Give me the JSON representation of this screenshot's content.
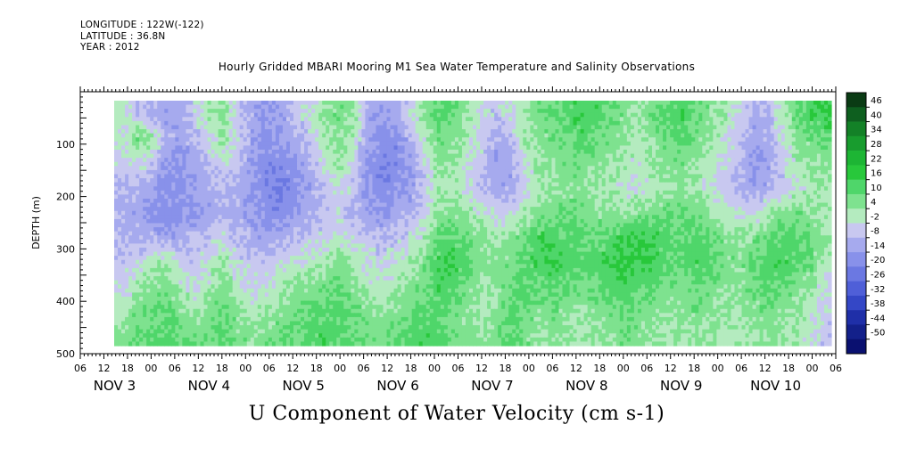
{
  "header": {
    "lines": [
      "LONGITUDE : 122W(-122)",
      "LATITUDE : 36.8N",
      "YEAR : 2012"
    ],
    "title": "Hourly Gridded MBARI Mooring M1 Sea Water Temperature and Salinity Observations"
  },
  "caption": "U Component of Water Velocity (cm s-1)",
  "chart_data": {
    "type": "heatmap",
    "title": "Hourly Gridded MBARI Mooring M1 Sea Water Temperature and Salinity Observations",
    "ylabel": "DEPTH (m)",
    "xlabel": "",
    "ylim": [
      500,
      0
    ],
    "xlim": [
      "NOV 2 06:00",
      "NOV 10 06:00"
    ],
    "yticks": [
      100,
      200,
      300,
      400,
      500
    ],
    "yticks_partial": {
      "ticks": [
        500,
        400,
        300,
        200,
        100
      ],
      "labels": [
        "500",
        "400",
        "300",
        "200",
        "100"
      ]
    },
    "x_hour_labels": [
      "06",
      "12",
      "18",
      "00",
      "06",
      "12",
      "18",
      "00",
      "06",
      "12",
      "18",
      "00",
      "06",
      "12",
      "18",
      "00",
      "06",
      "12",
      "18",
      "00",
      "06",
      "12",
      "18",
      "00",
      "06",
      "12",
      "18",
      "00",
      "06",
      "12",
      "18",
      "00",
      "06"
    ],
    "x_day_labels": [
      "NOV 3",
      "NOV 4",
      "NOV 5",
      "NOV 6",
      "NOV 7",
      "NOV 8",
      "NOV 9",
      "NOV 10"
    ],
    "colorbar": {
      "levels": [
        46,
        40,
        34,
        28,
        22,
        16,
        10,
        4,
        -2,
        -8,
        -14,
        -20,
        -26,
        -32,
        -38,
        -44,
        -50
      ],
      "colors": [
        "#0a3b14",
        "#0e5f1f",
        "#138127",
        "#189c2e",
        "#1db534",
        "#28c83b",
        "#4fd66a",
        "#7ee28f",
        "#b4ebbf",
        "#c8c8f0",
        "#a6aaee",
        "#8891ea",
        "#6b78e2",
        "#4f5fd8",
        "#3447c6",
        "#1f2fa8",
        "#13208a",
        "#0a1070"
      ]
    },
    "data_description_depth_rows": [
      25,
      75,
      125,
      175,
      225,
      275,
      325,
      375,
      425,
      475
    ],
    "values_grid": [
      [
        2,
        -6,
        -8,
        -12,
        -10,
        -4,
        2,
        6,
        -6,
        -10,
        -14,
        -12,
        -6,
        -2,
        4,
        8,
        6,
        -10,
        -14,
        -12,
        -4,
        6,
        12,
        10,
        4,
        -2,
        -6,
        -2,
        4,
        8,
        10,
        12,
        16,
        14,
        10,
        6,
        4,
        8,
        12,
        14,
        10,
        6,
        2,
        -4,
        -10,
        -8,
        2,
        10,
        14,
        16
      ],
      [
        -2,
        8,
        4,
        -10,
        -12,
        -8,
        -2,
        4,
        -4,
        -12,
        -16,
        -14,
        -10,
        -6,
        2,
        6,
        2,
        -12,
        -16,
        -16,
        -10,
        0,
        8,
        6,
        2,
        -4,
        -10,
        -8,
        2,
        6,
        8,
        10,
        12,
        10,
        8,
        4,
        2,
        6,
        10,
        12,
        8,
        4,
        0,
        -6,
        -12,
        -10,
        -2,
        6,
        8,
        10
      ],
      [
        -4,
        -2,
        -6,
        -14,
        -16,
        -12,
        -8,
        -4,
        -6,
        -14,
        -18,
        -18,
        -14,
        -10,
        -2,
        4,
        -2,
        -14,
        -18,
        -18,
        -14,
        -4,
        6,
        4,
        0,
        -6,
        -14,
        -12,
        -2,
        4,
        6,
        8,
        8,
        6,
        4,
        2,
        0,
        4,
        6,
        8,
        4,
        0,
        -4,
        -8,
        -14,
        -12,
        -6,
        2,
        4,
        6
      ],
      [
        -8,
        -10,
        -12,
        -16,
        -14,
        -12,
        -10,
        -8,
        -10,
        -14,
        -18,
        -20,
        -16,
        -12,
        -6,
        -2,
        -6,
        -14,
        -18,
        -16,
        -14,
        -6,
        2,
        2,
        -2,
        -8,
        -12,
        -10,
        -4,
        2,
        4,
        6,
        6,
        4,
        2,
        0,
        -2,
        2,
        4,
        6,
        2,
        -2,
        -6,
        -10,
        -12,
        -10,
        -6,
        0,
        2,
        2
      ],
      [
        -10,
        -12,
        -14,
        -18,
        -16,
        -14,
        -12,
        -10,
        -10,
        -14,
        -16,
        -18,
        -14,
        -10,
        -6,
        -4,
        -8,
        -12,
        -14,
        -12,
        -10,
        -4,
        4,
        6,
        4,
        0,
        -4,
        -4,
        2,
        6,
        8,
        10,
        8,
        6,
        4,
        4,
        6,
        8,
        10,
        10,
        8,
        4,
        0,
        -2,
        -4,
        2,
        6,
        8,
        6,
        2
      ],
      [
        -8,
        -10,
        -10,
        -12,
        -10,
        -8,
        -6,
        -4,
        -8,
        -10,
        -12,
        -10,
        -8,
        -6,
        -4,
        -2,
        -4,
        -6,
        -8,
        -6,
        -4,
        2,
        10,
        12,
        10,
        6,
        2,
        4,
        10,
        14,
        14,
        12,
        10,
        10,
        12,
        14,
        16,
        14,
        12,
        10,
        12,
        10,
        6,
        4,
        6,
        10,
        12,
        12,
        8,
        4
      ],
      [
        -6,
        -4,
        2,
        4,
        -4,
        -6,
        -2,
        4,
        -4,
        -6,
        -6,
        -4,
        -2,
        0,
        2,
        6,
        2,
        -2,
        -4,
        -2,
        2,
        8,
        14,
        16,
        12,
        8,
        6,
        8,
        12,
        14,
        16,
        14,
        12,
        14,
        16,
        18,
        16,
        14,
        12,
        12,
        14,
        12,
        8,
        6,
        10,
        14,
        14,
        12,
        8,
        2
      ],
      [
        -4,
        2,
        6,
        8,
        2,
        -2,
        2,
        8,
        0,
        -4,
        -2,
        2,
        4,
        6,
        8,
        10,
        6,
        2,
        0,
        4,
        6,
        10,
        14,
        12,
        8,
        4,
        6,
        10,
        12,
        10,
        12,
        10,
        8,
        10,
        12,
        14,
        12,
        10,
        8,
        8,
        10,
        8,
        6,
        6,
        8,
        12,
        10,
        8,
        4,
        -2
      ],
      [
        2,
        8,
        10,
        10,
        6,
        4,
        6,
        10,
        4,
        2,
        4,
        6,
        8,
        10,
        12,
        12,
        10,
        6,
        4,
        6,
        8,
        12,
        12,
        10,
        6,
        2,
        6,
        12,
        10,
        6,
        8,
        6,
        4,
        6,
        8,
        10,
        8,
        6,
        4,
        6,
        8,
        6,
        4,
        4,
        6,
        8,
        6,
        4,
        0,
        -4
      ],
      [
        6,
        10,
        12,
        12,
        10,
        8,
        8,
        12,
        8,
        6,
        8,
        10,
        10,
        12,
        14,
        12,
        10,
        8,
        8,
        10,
        12,
        14,
        12,
        8,
        6,
        4,
        8,
        12,
        8,
        4,
        6,
        4,
        2,
        4,
        6,
        8,
        6,
        4,
        2,
        4,
        6,
        4,
        2,
        2,
        4,
        6,
        4,
        2,
        -2,
        -6
      ]
    ]
  }
}
